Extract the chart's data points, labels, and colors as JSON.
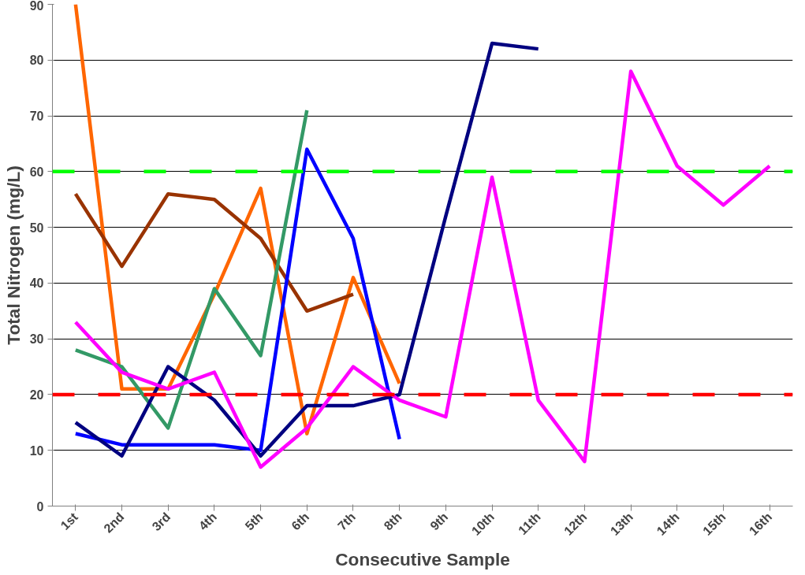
{
  "chart_data": {
    "type": "line",
    "xlabel": "Consecutive Sample",
    "ylabel": "Total Nitrogen (mg/L)",
    "categories": [
      "1st",
      "2nd",
      "3rd",
      "4th",
      "5th",
      "6th",
      "7th",
      "8th",
      "9th",
      "10th",
      "11th",
      "12th",
      "13th",
      "14th",
      "15th",
      "16th"
    ],
    "series": [
      {
        "color": "#ff6600",
        "values": [
          90,
          21,
          21,
          38,
          57,
          13,
          41,
          22,
          null,
          null,
          null,
          null,
          null,
          null,
          null,
          null
        ]
      },
      {
        "color": "#993300",
        "values": [
          56,
          43,
          56,
          55,
          48,
          35,
          38,
          null,
          null,
          null,
          null,
          null,
          null,
          null,
          null,
          null
        ]
      },
      {
        "color": "#339966",
        "values": [
          28,
          25,
          14,
          39,
          27,
          71,
          null,
          null,
          null,
          null,
          null,
          null,
          null,
          null,
          null,
          null
        ]
      },
      {
        "color": "#0000ff",
        "values": [
          13,
          11,
          11,
          11,
          10,
          64,
          48,
          12,
          null,
          null,
          null,
          null,
          null,
          null,
          null,
          null
        ]
      },
      {
        "color": "#000080",
        "values": [
          15,
          9,
          25,
          19,
          9,
          18,
          18,
          20,
          52,
          83,
          82,
          null,
          null,
          null,
          null,
          null
        ]
      },
      {
        "color": "#ff00ff",
        "values": [
          33,
          24,
          21,
          24,
          7,
          14,
          25,
          19,
          16,
          59,
          19,
          8,
          78,
          61,
          54,
          61
        ]
      }
    ],
    "ref_lines": [
      {
        "axis": "y",
        "value": 60,
        "color": "#00ff00",
        "line_style": "dashed"
      },
      {
        "axis": "y",
        "value": 20,
        "color": "#ff0000",
        "line_style": "dashed"
      }
    ],
    "ylim": [
      0,
      90
    ],
    "yticks": [
      0,
      10,
      20,
      30,
      40,
      50,
      60,
      70,
      80,
      90
    ],
    "grid": "y",
    "marker": "none",
    "line_style": "solid"
  }
}
